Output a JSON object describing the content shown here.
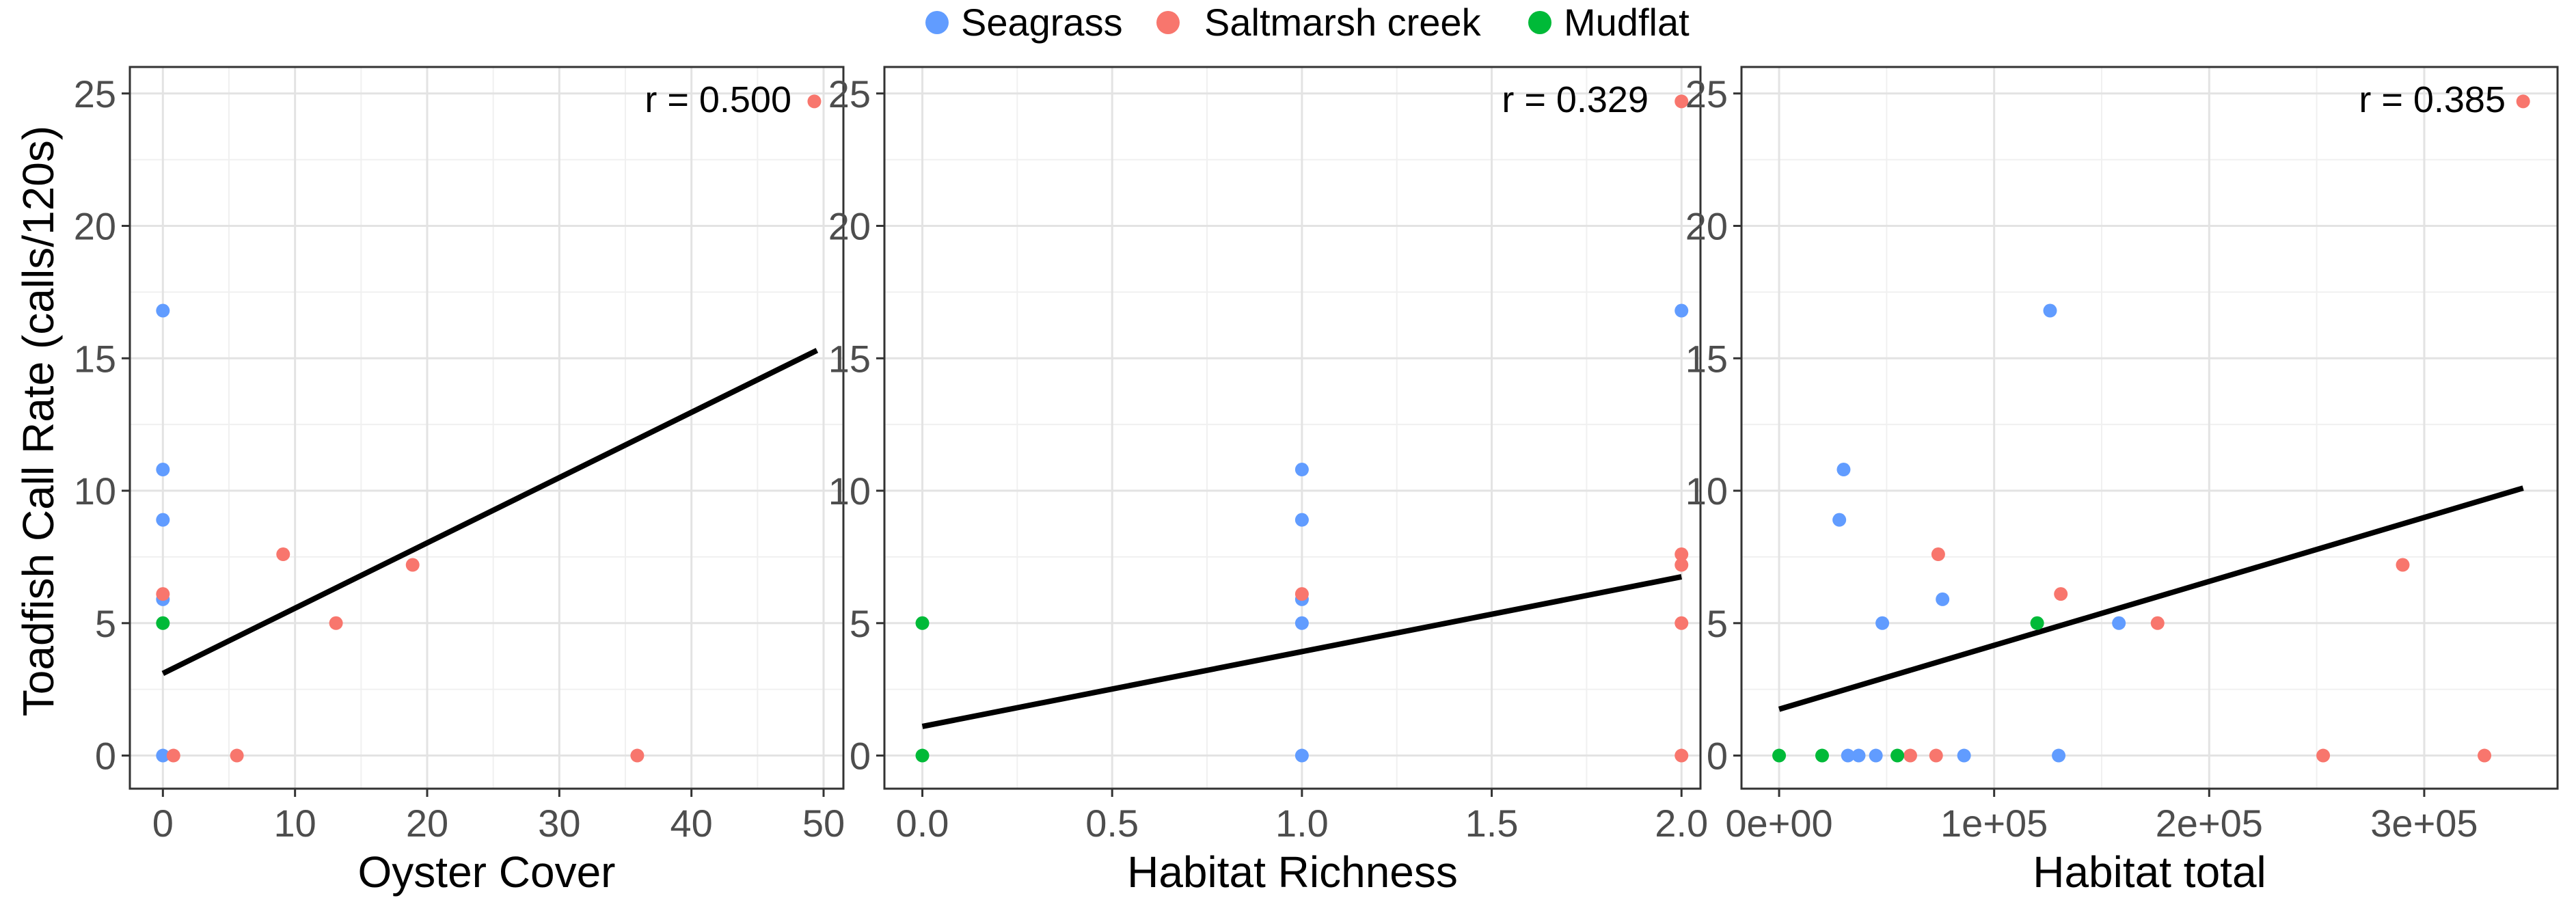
{
  "legend": {
    "entries": [
      {
        "label": "Seagrass",
        "color": "#619CFF"
      },
      {
        "label": "Saltmarsh creek",
        "color": "#F8766D"
      },
      {
        "label": "Mudflat",
        "color": "#00BA38"
      }
    ]
  },
  "chart_data": [
    {
      "type": "scatter",
      "xlabel": "Oyster Cover",
      "ylabel": "Toadfish Call Rate (calls/120s)",
      "annotation": "r = 0.500",
      "xlim": [
        -2.5,
        51.5
      ],
      "ylim": [
        -1.25,
        26.0
      ],
      "xticks": [
        0,
        10,
        20,
        30,
        40,
        50
      ],
      "xtick_labels": [
        "0",
        "10",
        "20",
        "30",
        "40",
        "50"
      ],
      "yticks": [
        0,
        5,
        10,
        15,
        20,
        25
      ],
      "ytick_labels": [
        "0",
        "5",
        "10",
        "15",
        "20",
        "25"
      ],
      "grid": true,
      "fit_line": {
        "x": [
          0,
          49.5
        ],
        "y": [
          3.1,
          15.3
        ]
      },
      "series": [
        {
          "name": "Seagrass",
          "color": "#619CFF",
          "points": [
            [
              0,
              16.8
            ],
            [
              0,
              10.8
            ],
            [
              0,
              8.9
            ],
            [
              0,
              5.9
            ],
            [
              0,
              0
            ]
          ]
        },
        {
          "name": "Saltmarsh creek",
          "color": "#F8766D",
          "points": [
            [
              49.3,
              24.7
            ],
            [
              9.1,
              7.6
            ],
            [
              18.9,
              7.2
            ],
            [
              13.1,
              5.0
            ],
            [
              0,
              6.1
            ],
            [
              0.8,
              0
            ],
            [
              5.6,
              0
            ],
            [
              35.9,
              0
            ]
          ]
        },
        {
          "name": "Mudflat",
          "color": "#00BA38",
          "points": [
            [
              0,
              5.0
            ]
          ]
        }
      ]
    },
    {
      "type": "scatter",
      "xlabel": "Habitat Richness",
      "ylabel": "",
      "annotation": "r = 0.329",
      "xlim": [
        -0.1,
        2.05
      ],
      "ylim": [
        -1.25,
        26.0
      ],
      "xticks": [
        0,
        0.5,
        1.0,
        1.5,
        2.0
      ],
      "xtick_labels": [
        "0.0",
        "0.5",
        "1.0",
        "1.5",
        "2.0"
      ],
      "yticks": [
        0,
        5,
        10,
        15,
        20,
        25
      ],
      "ytick_labels": [
        "0",
        "5",
        "10",
        "15",
        "20",
        "25"
      ],
      "grid": true,
      "fit_line": {
        "x": [
          0,
          2.0
        ],
        "y": [
          1.1,
          6.75
        ]
      },
      "series": [
        {
          "name": "Seagrass",
          "color": "#619CFF",
          "points": [
            [
              2.0,
              16.8
            ],
            [
              1.0,
              10.8
            ],
            [
              1.0,
              8.9
            ],
            [
              1.0,
              5.9
            ],
            [
              1.0,
              5.0
            ],
            [
              1.0,
              0
            ]
          ]
        },
        {
          "name": "Saltmarsh creek",
          "color": "#F8766D",
          "points": [
            [
              2.0,
              24.7
            ],
            [
              2.0,
              7.6
            ],
            [
              2.0,
              7.2
            ],
            [
              2.0,
              5.0
            ],
            [
              2.0,
              0
            ],
            [
              1.0,
              6.1
            ]
          ]
        },
        {
          "name": "Mudflat",
          "color": "#00BA38",
          "points": [
            [
              0,
              5.0
            ],
            [
              0,
              0
            ]
          ]
        }
      ]
    },
    {
      "type": "scatter",
      "xlabel": "Habitat total",
      "ylabel": "",
      "annotation": "r = 0.385",
      "xlim": [
        -17500,
        362000
      ],
      "ylim": [
        -1.25,
        26.0
      ],
      "xticks": [
        0,
        100000,
        200000,
        300000
      ],
      "xtick_labels": [
        "0e+00",
        "1e+05",
        "2e+05",
        "3e+05"
      ],
      "yticks": [
        0,
        5,
        10,
        15,
        20,
        25
      ],
      "ytick_labels": [
        "0",
        "5",
        "10",
        "15",
        "20",
        "25"
      ],
      "grid": true,
      "fit_line": {
        "x": [
          0,
          346000
        ],
        "y": [
          1.75,
          10.1
        ]
      },
      "series": [
        {
          "name": "Seagrass",
          "color": "#619CFF",
          "points": [
            [
              126000,
              16.8
            ],
            [
              30000,
              10.8
            ],
            [
              28000,
              8.9
            ],
            [
              76000,
              5.9
            ],
            [
              48000,
              5.0
            ],
            [
              158000,
              5.0
            ],
            [
              32000,
              0
            ],
            [
              37000,
              0
            ],
            [
              45000,
              0
            ],
            [
              86000,
              0
            ],
            [
              130000,
              0
            ]
          ]
        },
        {
          "name": "Saltmarsh creek",
          "color": "#F8766D",
          "points": [
            [
              346000,
              24.7
            ],
            [
              74000,
              7.6
            ],
            [
              290000,
              7.2
            ],
            [
              131000,
              6.1
            ],
            [
              176000,
              5.0
            ],
            [
              61000,
              0
            ],
            [
              73000,
              0
            ],
            [
              253000,
              0
            ],
            [
              328000,
              0
            ]
          ]
        },
        {
          "name": "Mudflat",
          "color": "#00BA38",
          "points": [
            [
              120000,
              5.0
            ],
            [
              0,
              0
            ],
            [
              20000,
              0
            ],
            [
              55000,
              0
            ]
          ]
        }
      ]
    }
  ]
}
